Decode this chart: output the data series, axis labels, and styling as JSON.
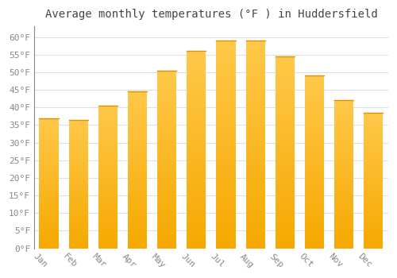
{
  "title": "Average monthly temperatures (°F ) in Huddersfield",
  "months": [
    "Jan",
    "Feb",
    "Mar",
    "Apr",
    "May",
    "Jun",
    "Jul",
    "Aug",
    "Sep",
    "Oct",
    "Nov",
    "Dec"
  ],
  "values": [
    37,
    36.5,
    40.5,
    44.5,
    50.5,
    56,
    59,
    59,
    54.5,
    49,
    42,
    38.5
  ],
  "bar_color_top": "#FFC84A",
  "bar_color_bottom": "#F5A800",
  "bar_edge_color": "#E09000",
  "ylim": [
    0,
    63
  ],
  "yticks": [
    0,
    5,
    10,
    15,
    20,
    25,
    30,
    35,
    40,
    45,
    50,
    55,
    60
  ],
  "background_color": "#FFFFFF",
  "grid_color": "#E0E0E0",
  "title_fontsize": 10,
  "tick_fontsize": 8,
  "title_color": "#444444",
  "tick_color": "#888888",
  "xlabel_rotation": -45
}
